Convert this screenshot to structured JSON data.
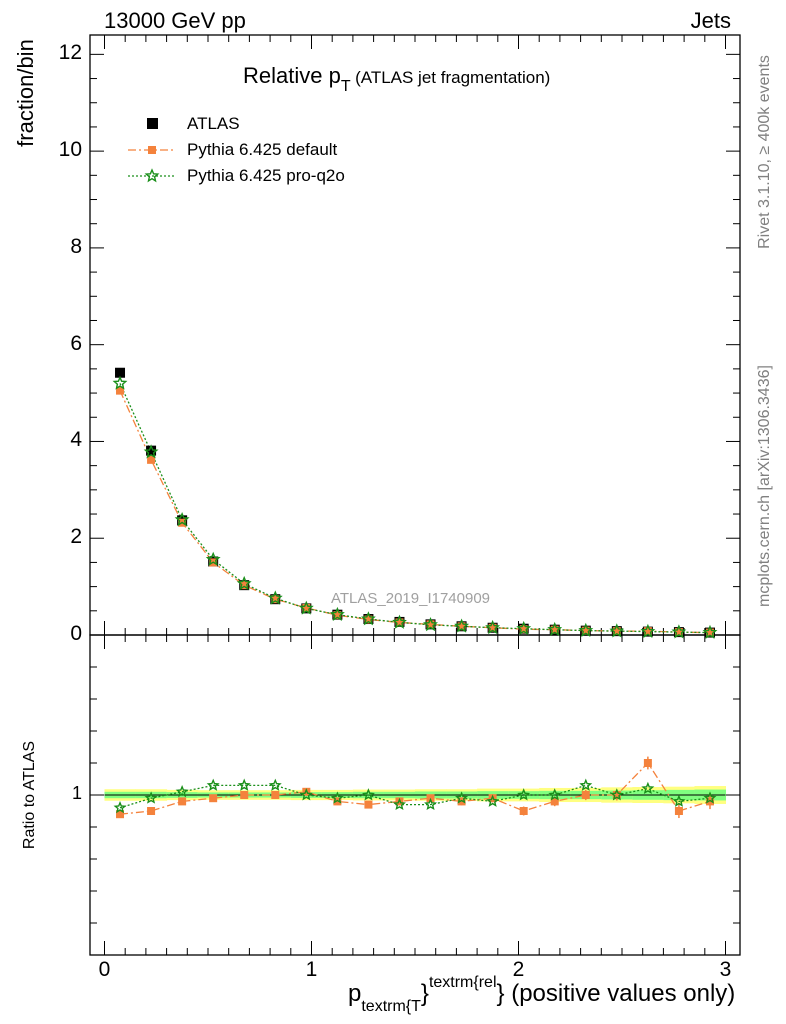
{
  "header": {
    "left": "13000 GeV pp",
    "right": "Jets"
  },
  "side_labels": {
    "rivet": "Rivet 3.1.10, ≥ 400k events",
    "mcplots": "mcplots.cern.ch [arXiv:1306.3436]"
  },
  "colors": {
    "atlas": "#000000",
    "default": "#f4823c",
    "proq2o": "#1a8f1a",
    "band_yellow": "#ffff80",
    "band_green": "#80ff80"
  },
  "chart_data": [
    {
      "type": "line",
      "title_main": "Relative p",
      "title_sub": "T",
      "title_rest": "(ATLAS jet fragmentation)",
      "ylabel": "fraction/bin",
      "xlim": [
        -0.07,
        3.07
      ],
      "ylim": [
        0,
        12.4
      ],
      "yticks": [
        0,
        2,
        4,
        6,
        8,
        10,
        12
      ],
      "ytick_labels": [
        "0",
        "2",
        "4",
        "6",
        "8",
        "10",
        "12"
      ],
      "watermark": "ATLAS_2019_I1740909",
      "x": [
        0.075,
        0.225,
        0.375,
        0.525,
        0.675,
        0.825,
        0.975,
        1.125,
        1.275,
        1.425,
        1.575,
        1.725,
        1.875,
        2.025,
        2.175,
        2.325,
        2.475,
        2.625,
        2.775,
        2.925
      ],
      "series": [
        {
          "name": "ATLAS",
          "marker": "square",
          "values": [
            5.42,
            3.81,
            2.37,
            1.52,
            1.03,
            0.74,
            0.55,
            0.42,
            0.33,
            0.27,
            0.22,
            0.18,
            0.15,
            0.13,
            0.11,
            0.09,
            0.08,
            0.07,
            0.06,
            0.05
          ]
        },
        {
          "name": "Pythia 6.425 default",
          "marker": "filled-square",
          "linestyle": "dash-dot",
          "values": [
            5.05,
            3.62,
            2.32,
            1.5,
            1.03,
            0.74,
            0.56,
            0.41,
            0.32,
            0.26,
            0.22,
            0.18,
            0.15,
            0.12,
            0.11,
            0.09,
            0.08,
            0.08,
            0.06,
            0.05
          ]
        },
        {
          "name": "Pythia 6.425 pro-q2o",
          "marker": "star",
          "linestyle": "dotted",
          "values": [
            5.2,
            3.78,
            2.38,
            1.56,
            1.06,
            0.76,
            0.55,
            0.42,
            0.33,
            0.26,
            0.21,
            0.18,
            0.15,
            0.13,
            0.11,
            0.09,
            0.08,
            0.07,
            0.06,
            0.05
          ]
        }
      ]
    },
    {
      "type": "line",
      "ylabel": "Ratio to ATLAS",
      "ylim": [
        0.5,
        1.5
      ],
      "yticks": [
        1
      ],
      "ytick_labels": [
        "1"
      ],
      "xlim": [
        -0.07,
        3.07
      ],
      "xticks": [
        0,
        1,
        2,
        3
      ],
      "xtick_labels": [
        "0",
        "1",
        "2",
        "3"
      ],
      "xlabel_main": "p",
      "xlabel_sub": "textrm{T",
      "xlabel_brace": "}",
      "xlabel_sup": "textrm{rel",
      "xlabel_end": "} (positive values only)",
      "band_yellow_halfwidth": [
        0.018,
        0.018,
        0.016,
        0.015,
        0.015,
        0.015,
        0.016,
        0.016,
        0.017,
        0.017,
        0.018,
        0.018,
        0.02,
        0.02,
        0.022,
        0.022,
        0.024,
        0.025,
        0.026,
        0.028
      ],
      "band_green_halfwidth": [
        0.01,
        0.01,
        0.009,
        0.008,
        0.008,
        0.008,
        0.009,
        0.009,
        0.01,
        0.01,
        0.011,
        0.011,
        0.012,
        0.012,
        0.013,
        0.013,
        0.014,
        0.015,
        0.016,
        0.017
      ],
      "series": [
        {
          "name": "Pythia 6.425 default",
          "values": [
            0.94,
            0.95,
            0.98,
            0.99,
            1.0,
            1.0,
            1.01,
            0.98,
            0.97,
            0.98,
            0.99,
            0.98,
            0.99,
            0.95,
            0.98,
            1.0,
            1.0,
            1.1,
            0.95,
            0.98
          ],
          "errors": [
            0.008,
            0.008,
            0.008,
            0.008,
            0.008,
            0.008,
            0.009,
            0.009,
            0.01,
            0.01,
            0.011,
            0.012,
            0.013,
            0.014,
            0.015,
            0.016,
            0.017,
            0.02,
            0.022,
            0.024
          ]
        },
        {
          "name": "Pythia 6.425 pro-q2o",
          "values": [
            0.96,
            0.99,
            1.01,
            1.03,
            1.03,
            1.03,
            1.0,
            0.99,
            1.0,
            0.97,
            0.97,
            0.99,
            0.98,
            1.0,
            1.0,
            1.03,
            1.0,
            1.02,
            0.98,
            0.99
          ],
          "errors": [
            0.008,
            0.008,
            0.008,
            0.008,
            0.008,
            0.008,
            0.009,
            0.009,
            0.01,
            0.01,
            0.011,
            0.012,
            0.013,
            0.014,
            0.015,
            0.016,
            0.017,
            0.02,
            0.022,
            0.024
          ]
        }
      ]
    }
  ]
}
